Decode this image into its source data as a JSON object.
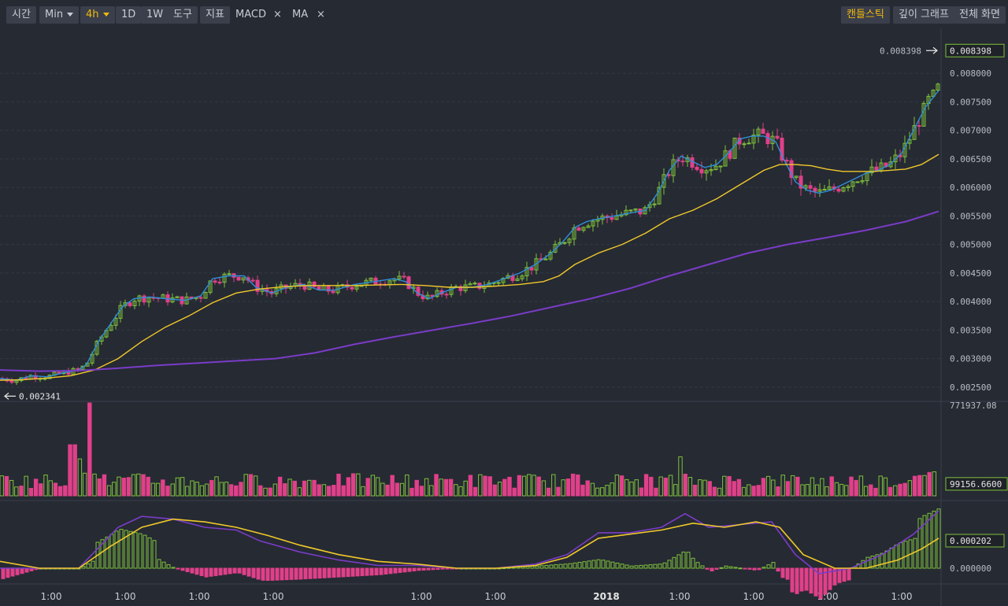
{
  "toolbar": {
    "time_label": "시간",
    "min_label": "Min",
    "interval_label": "4h",
    "day_label": "1D",
    "week_label": "1W",
    "tools_label": "도구",
    "indicators_label": "지표",
    "macd_label": "MACD",
    "ma_label": "MA",
    "close_symbol": "×",
    "candlestick_label": "캔들스틱",
    "depth_label": "깊이 그래프",
    "fullscreen_label": "전체 화면"
  },
  "colors": {
    "background": "#262a33",
    "up": "#7ec13a",
    "down": "#e0408a",
    "ma_fast": "#2f8fd8",
    "ma_mid": "#f0c92a",
    "ma_slow": "#7a3cc8",
    "accent": "#f0b90b"
  },
  "chart_data": [
    {
      "type": "candlestick",
      "yticks": [
        "0.008000",
        "0.007500",
        "0.007000",
        "0.006500",
        "0.006000",
        "0.005500",
        "0.005000",
        "0.004500",
        "0.004000",
        "0.003500",
        "0.003000",
        "0.002500"
      ],
      "ylim": [
        0.00225,
        0.00865
      ],
      "current_price_label": "0.008398",
      "current_price": 0.008398,
      "low_price_label": "0.002341",
      "low_price": 0.002341,
      "x_ticks": [
        "1:00",
        "1:00",
        "1:00",
        "1:00",
        "1:00",
        "1:00",
        "2018",
        "1:00",
        "1:00",
        "1:00",
        "1:00"
      ],
      "series": [
        {
          "points": [
            [
              0,
              0.00265
            ],
            [
              20,
              0.00262
            ],
            [
              40,
              0.0027
            ],
            [
              60,
              0.00268
            ],
            [
              80,
              0.00275
            ],
            [
              100,
              0.0028
            ],
            [
              110,
              0.0029
            ],
            [
              125,
              0.0033
            ],
            [
              140,
              0.0036
            ],
            [
              155,
              0.0039
            ],
            [
              170,
              0.00405
            ],
            [
              190,
              0.00408
            ],
            [
              210,
              0.00405
            ],
            [
              235,
              0.00402
            ],
            [
              255,
              0.0041
            ],
            [
              270,
              0.0044
            ],
            [
              290,
              0.00445
            ],
            [
              310,
              0.00445
            ],
            [
              325,
              0.00425
            ],
            [
              345,
              0.00415
            ],
            [
              365,
              0.00425
            ],
            [
              385,
              0.0043
            ],
            [
              405,
              0.0042
            ],
            [
              425,
              0.0042
            ],
            [
              450,
              0.0043
            ],
            [
              475,
              0.00435
            ],
            [
              500,
              0.0044
            ],
            [
              515,
              0.00435
            ],
            [
              530,
              0.00415
            ],
            [
              545,
              0.00405
            ],
            [
              560,
              0.00415
            ],
            [
              580,
              0.00425
            ],
            [
              600,
              0.00425
            ],
            [
              620,
              0.0043
            ],
            [
              640,
              0.0044
            ],
            [
              660,
              0.0045
            ],
            [
              680,
              0.00465
            ],
            [
              700,
              0.00485
            ],
            [
              715,
              0.00505
            ],
            [
              730,
              0.0053
            ],
            [
              745,
              0.0054
            ],
            [
              760,
              0.00545
            ],
            [
              780,
              0.0055
            ],
            [
              800,
              0.00555
            ],
            [
              820,
              0.0056
            ],
            [
              835,
              0.0059
            ],
            [
              850,
              0.0063
            ],
            [
              865,
              0.00655
            ],
            [
              880,
              0.00645
            ],
            [
              895,
              0.00635
            ],
            [
              910,
              0.0064
            ],
            [
              925,
              0.0066
            ],
            [
              940,
              0.00685
            ],
            [
              955,
              0.0069
            ],
            [
              970,
              0.0069
            ],
            [
              985,
              0.0068
            ],
            [
              995,
              0.0065
            ],
            [
              1010,
              0.0061
            ],
            [
              1025,
              0.00595
            ],
            [
              1040,
              0.0059
            ],
            [
              1055,
              0.00595
            ],
            [
              1070,
              0.00605
            ],
            [
              1085,
              0.00615
            ],
            [
              1100,
              0.00625
            ],
            [
              1115,
              0.0063
            ],
            [
              1130,
              0.0064
            ],
            [
              1145,
              0.0066
            ],
            [
              1160,
              0.007
            ],
            [
              1175,
              0.0074
            ],
            [
              1192,
              0.0077
            ]
          ]
        },
        {
          "points": [
            [
              0,
              0.00262
            ],
            [
              30,
              0.00263
            ],
            [
              60,
              0.00266
            ],
            [
              90,
              0.0027
            ],
            [
              120,
              0.0028
            ],
            [
              150,
              0.003
            ],
            [
              180,
              0.0033
            ],
            [
              210,
              0.00355
            ],
            [
              240,
              0.00375
            ],
            [
              270,
              0.00398
            ],
            [
              300,
              0.00415
            ],
            [
              330,
              0.00422
            ],
            [
              360,
              0.00426
            ],
            [
              390,
              0.00428
            ],
            [
              420,
              0.00428
            ],
            [
              450,
              0.00428
            ],
            [
              480,
              0.00429
            ],
            [
              510,
              0.0043
            ],
            [
              540,
              0.00428
            ],
            [
              570,
              0.00425
            ],
            [
              600,
              0.00425
            ],
            [
              630,
              0.00427
            ],
            [
              660,
              0.0043
            ],
            [
              690,
              0.00435
            ],
            [
              710,
              0.00445
            ],
            [
              730,
              0.00465
            ],
            [
              760,
              0.00485
            ],
            [
              790,
              0.005
            ],
            [
              820,
              0.0052
            ],
            [
              850,
              0.00545
            ],
            [
              880,
              0.0056
            ],
            [
              910,
              0.0058
            ],
            [
              940,
              0.00605
            ],
            [
              970,
              0.0063
            ],
            [
              990,
              0.0064
            ],
            [
              1010,
              0.0064
            ],
            [
              1030,
              0.00638
            ],
            [
              1050,
              0.00632
            ],
            [
              1070,
              0.00628
            ],
            [
              1090,
              0.00628
            ],
            [
              1110,
              0.00628
            ],
            [
              1130,
              0.0063
            ],
            [
              1150,
              0.00632
            ],
            [
              1170,
              0.0064
            ],
            [
              1192,
              0.00658
            ]
          ]
        },
        {
          "points": [
            [
              0,
              0.0028
            ],
            [
              50,
              0.00278
            ],
            [
              100,
              0.00279
            ],
            [
              150,
              0.00283
            ],
            [
              200,
              0.00288
            ],
            [
              250,
              0.00292
            ],
            [
              300,
              0.00296
            ],
            [
              350,
              0.003
            ],
            [
              400,
              0.0031
            ],
            [
              450,
              0.00325
            ],
            [
              500,
              0.00338
            ],
            [
              550,
              0.0035
            ],
            [
              600,
              0.00362
            ],
            [
              650,
              0.00375
            ],
            [
              700,
              0.0039
            ],
            [
              750,
              0.00405
            ],
            [
              800,
              0.00423
            ],
            [
              850,
              0.00445
            ],
            [
              900,
              0.00465
            ],
            [
              950,
              0.00485
            ],
            [
              1000,
              0.005
            ],
            [
              1050,
              0.00512
            ],
            [
              1100,
              0.00525
            ],
            [
              1150,
              0.0054
            ],
            [
              1192,
              0.00558
            ]
          ]
        }
      ]
    },
    {
      "type": "bar",
      "ymax_label": "771937.08",
      "current_label": "99156.6600",
      "ylim": [
        0,
        771937.08
      ]
    },
    {
      "type": "macd",
      "labels": [
        "0.000202",
        "0.000000"
      ],
      "ylim": [
        -0.00015,
        0.00045
      ],
      "series": [
        {
          "points": [
            [
              0,
              0.0
            ],
            [
              50,
              0.0
            ],
            [
              100,
              0.0
            ],
            [
              150,
              0.0003
            ],
            [
              180,
              0.00038
            ],
            [
              220,
              0.00036
            ],
            [
              260,
              0.0003
            ],
            [
              300,
              0.00028
            ],
            [
              330,
              0.0002
            ],
            [
              380,
              0.00012
            ],
            [
              430,
              6e-05
            ],
            [
              480,
              2e-05
            ],
            [
              530,
              2e-05
            ],
            [
              580,
              0.0
            ],
            [
              630,
              0.0
            ],
            [
              680,
              3e-05
            ],
            [
              720,
              0.0001
            ],
            [
              760,
              0.00026
            ],
            [
              800,
              0.00026
            ],
            [
              840,
              0.0003
            ],
            [
              870,
              0.0004
            ],
            [
              900,
              0.0003
            ],
            [
              940,
              0.00032
            ],
            [
              980,
              0.00034
            ],
            [
              1010,
              0.0001
            ],
            [
              1040,
              -4e-05
            ],
            [
              1080,
              0.0
            ],
            [
              1120,
              0.0001
            ],
            [
              1160,
              0.00025
            ],
            [
              1192,
              0.00042
            ]
          ]
        },
        {
          "points": [
            [
              0,
              5e-05
            ],
            [
              50,
              0.0
            ],
            [
              100,
              0.0
            ],
            [
              140,
              0.00016
            ],
            [
              180,
              0.0003
            ],
            [
              220,
              0.00036
            ],
            [
              260,
              0.00034
            ],
            [
              300,
              0.0003
            ],
            [
              340,
              0.00024
            ],
            [
              380,
              0.00017
            ],
            [
              430,
              0.0001
            ],
            [
              480,
              5e-05
            ],
            [
              530,
              3e-05
            ],
            [
              580,
              0.0
            ],
            [
              630,
              0.0
            ],
            [
              680,
              2e-05
            ],
            [
              720,
              8e-05
            ],
            [
              760,
              0.00022
            ],
            [
              800,
              0.00025
            ],
            [
              840,
              0.00028
            ],
            [
              880,
              0.00033
            ],
            [
              920,
              0.0003
            ],
            [
              960,
              0.00034
            ],
            [
              990,
              0.0003
            ],
            [
              1020,
              0.0001
            ],
            [
              1060,
              0.0
            ],
            [
              1100,
              0.0
            ],
            [
              1140,
              6e-05
            ],
            [
              1170,
              0.00014
            ],
            [
              1192,
              0.00022
            ]
          ]
        }
      ]
    }
  ]
}
